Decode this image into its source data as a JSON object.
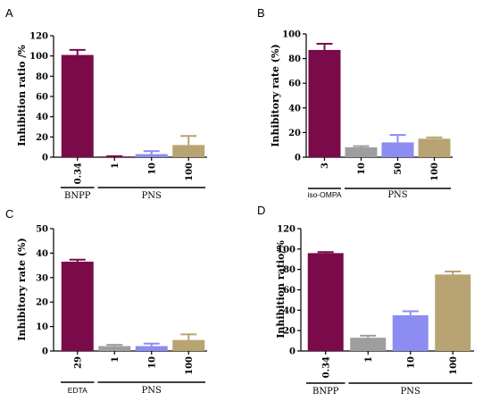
{
  "chart_data": [
    {
      "panel": "A",
      "type": "bar",
      "ylabel": "Inhibition ratio /%",
      "ylim": [
        0,
        120
      ],
      "yticks": [
        0,
        20,
        40,
        60,
        80,
        100,
        120
      ],
      "categories": [
        "0.34",
        "1",
        "10",
        "100"
      ],
      "values": [
        101,
        0.5,
        3,
        12
      ],
      "errors": [
        5,
        0.5,
        3,
        9
      ],
      "colors": [
        "#7a0a4a",
        "#7a0a4a",
        "#8c8cf2",
        "#b8a472"
      ],
      "groups": [
        {
          "label": "BNPP",
          "from": 0,
          "to": 0
        },
        {
          "label": "PNS",
          "from": 1,
          "to": 3
        }
      ]
    },
    {
      "panel": "B",
      "type": "bar",
      "ylabel": "Inhibitory rate (%)",
      "ylim": [
        0,
        100
      ],
      "yticks": [
        0,
        20,
        40,
        60,
        80,
        100
      ],
      "categories": [
        "3",
        "10",
        "50",
        "100"
      ],
      "values": [
        87,
        8,
        12,
        15
      ],
      "errors": [
        5,
        1,
        6,
        1
      ],
      "colors": [
        "#7a0a4a",
        "#9e9e9e",
        "#8c8cf2",
        "#b8a472"
      ],
      "groups": [
        {
          "label": "iso-OMPA",
          "from": 0,
          "to": 0
        },
        {
          "label": "PNS",
          "from": 1,
          "to": 3
        }
      ]
    },
    {
      "panel": "C",
      "type": "bar",
      "ylabel": "Inhibitory rate (%)",
      "ylim": [
        0,
        50
      ],
      "yticks": [
        0,
        10,
        20,
        30,
        40,
        50
      ],
      "categories": [
        "29",
        "1",
        "10",
        "100"
      ],
      "values": [
        36.5,
        2,
        2,
        4.5
      ],
      "errors": [
        0.8,
        0.5,
        1,
        2.3
      ],
      "colors": [
        "#7a0a4a",
        "#9e9e9e",
        "#8c8cf2",
        "#b8a472"
      ],
      "groups": [
        {
          "label": "EDTA",
          "from": 0,
          "to": 0
        },
        {
          "label": "PNS",
          "from": 1,
          "to": 3
        }
      ]
    },
    {
      "panel": "D",
      "type": "bar",
      "ylabel": "Inhibition ratio/%",
      "ylim": [
        0,
        120
      ],
      "yticks": [
        0,
        20,
        40,
        60,
        80,
        100,
        120
      ],
      "categories": [
        "0.34",
        "1",
        "10",
        "100"
      ],
      "values": [
        96,
        13,
        35,
        75
      ],
      "errors": [
        1,
        2,
        4,
        3
      ],
      "colors": [
        "#7a0a4a",
        "#9e9e9e",
        "#8c8cf2",
        "#b8a472"
      ],
      "groups": [
        {
          "label": "BNPP",
          "from": 0,
          "to": 0
        },
        {
          "label": "PNS",
          "from": 1,
          "to": 3
        }
      ]
    }
  ]
}
